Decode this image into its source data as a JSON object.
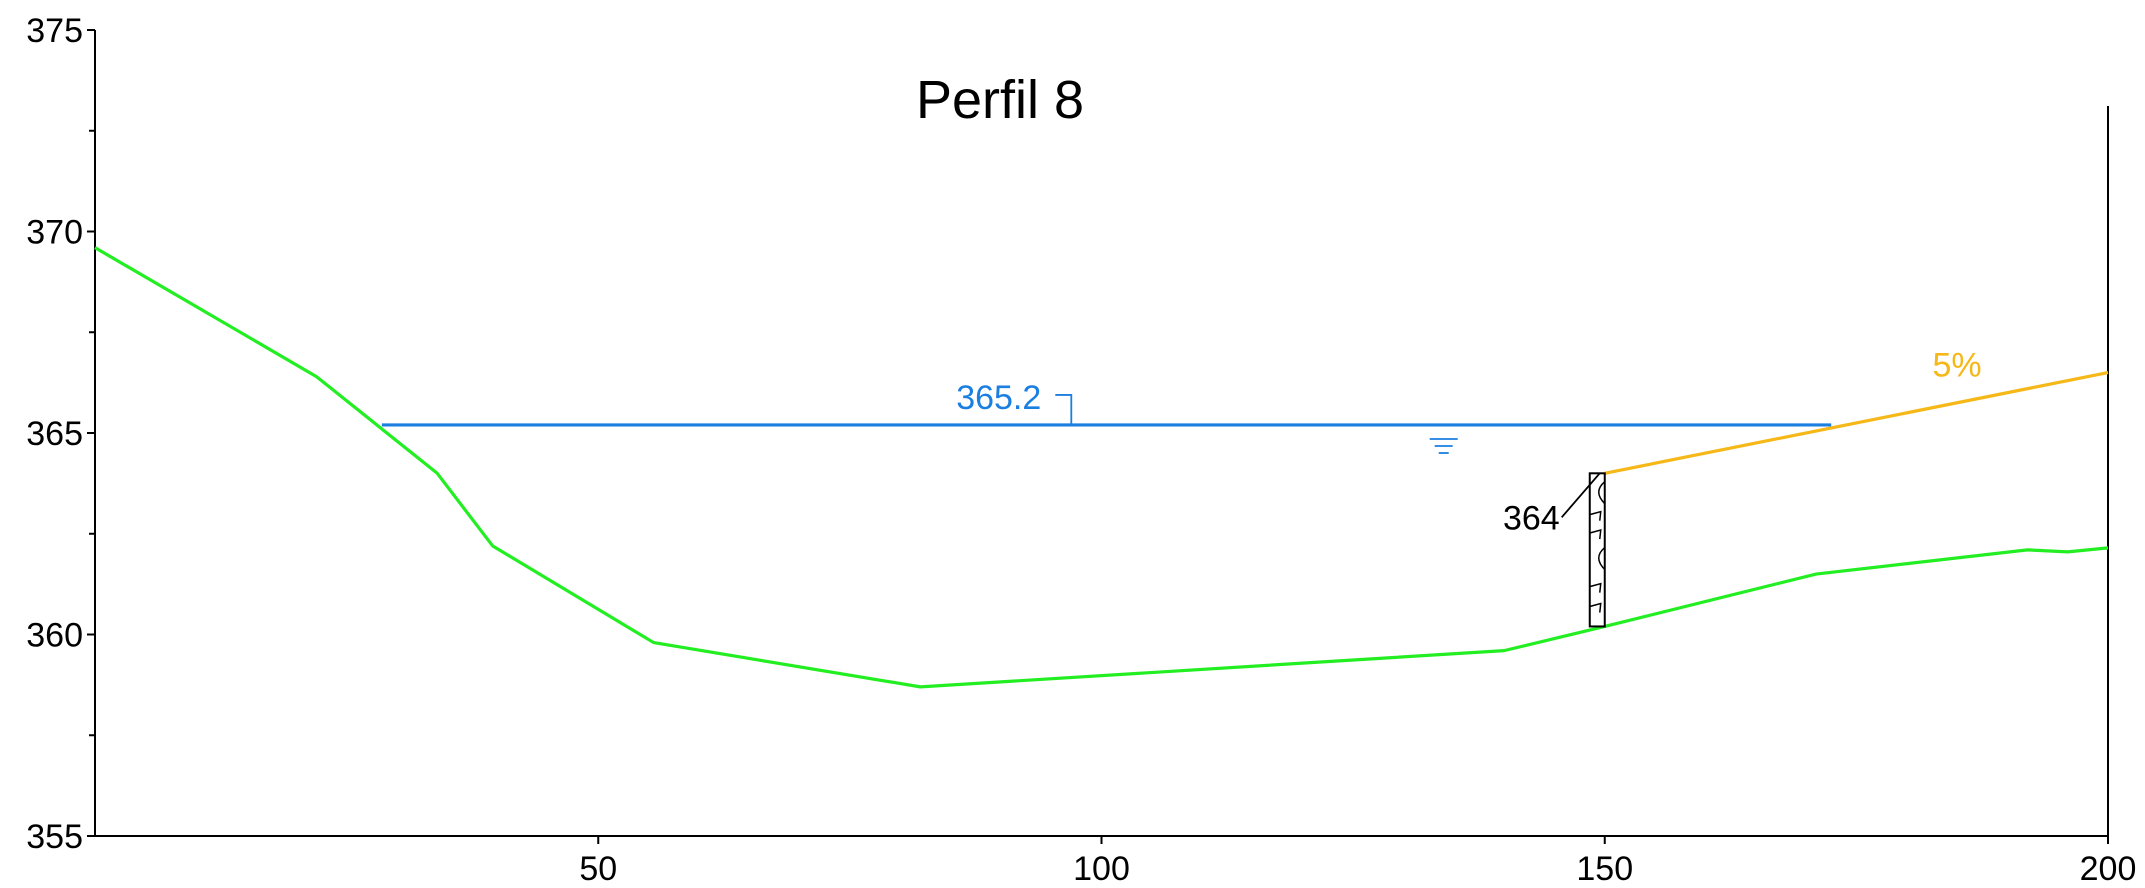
{
  "chart_data": {
    "type": "line",
    "title": "Perfil 8",
    "xlabel": "",
    "ylabel": "",
    "xlim": [
      0,
      200
    ],
    "ylim": [
      355,
      375
    ],
    "x_ticks": [
      50,
      100,
      150,
      200
    ],
    "y_ticks": [
      355,
      360,
      365,
      370,
      375
    ],
    "y_minor_ticks": [
      357.5,
      362.5,
      367.5,
      372.5
    ],
    "grid": false,
    "series": [
      {
        "color": "#22ee22",
        "points": [
          [
            0,
            369.6
          ],
          [
            22,
            366.4
          ],
          [
            34,
            364.0
          ],
          [
            39.5,
            362.2
          ],
          [
            55.5,
            359.8
          ],
          [
            82,
            358.7
          ],
          [
            140,
            359.6
          ],
          [
            150,
            360.2
          ],
          [
            171,
            361.5
          ],
          [
            192,
            362.1
          ],
          [
            196,
            362.05
          ],
          [
            200,
            362.15
          ]
        ]
      },
      {
        "color": "#1a7fe0",
        "points": [
          [
            28.5,
            365.2
          ],
          [
            172.5,
            365.2
          ]
        ]
      },
      {
        "color": "#f5b818",
        "points": [
          [
            150,
            364.0
          ],
          [
            200,
            366.5
          ]
        ]
      }
    ],
    "annotations": {
      "water_level": {
        "text": "365.2",
        "x": 97,
        "y": 365.2,
        "color": "#1a7fe0"
      },
      "slope": {
        "text": "5%",
        "x": 185,
        "y": 366.4,
        "color": "#f5b818"
      },
      "wall_top": {
        "text": "364",
        "x": 149.5,
        "y": 364.0
      },
      "wall": {
        "x": 150,
        "y_bottom": 360.2,
        "y_top": 364.0
      },
      "water_symbol": {
        "x": 134,
        "y": 365
      }
    }
  }
}
